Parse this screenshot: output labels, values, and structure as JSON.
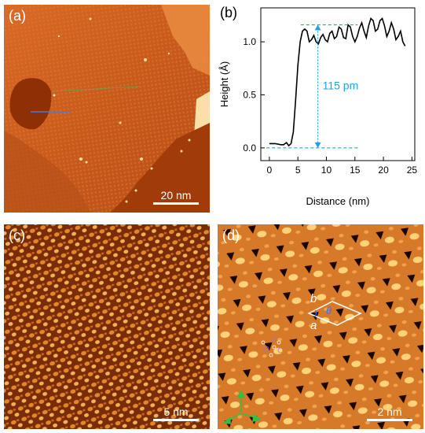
{
  "panels": {
    "a": {
      "label": "(a)",
      "scale_bar": "20 nm"
    },
    "b": {
      "label": "(b)"
    },
    "c": {
      "label": "(c)",
      "scale_bar": "5 nm"
    },
    "d": {
      "label": "(d)",
      "scale_bar": "2 nm",
      "lattice_a": "a",
      "lattice_b": "b",
      "angle": "θ"
    }
  },
  "colors": {
    "afm_dark": "#3a0d00",
    "afm_mid": "#c4581c",
    "afm_light": "#ffd27a",
    "curve": "#000000",
    "annotation": "#1fa3e0",
    "trimer": "#b070c0"
  },
  "chart_data": {
    "type": "line",
    "xlabel": "Distance (nm)",
    "ylabel": "Height (Å)",
    "xlim": [
      -1.5,
      25.5
    ],
    "ylim": [
      -0.12,
      1.32
    ],
    "xticks": [
      0,
      5,
      10,
      15,
      20,
      25
    ],
    "yticks": [
      0.0,
      0.5,
      1.0
    ],
    "xtick_labels": [
      "0",
      "5",
      "10",
      "15",
      "20",
      "25"
    ],
    "ytick_labels": [
      "0.0",
      "0.5",
      "1.0"
    ],
    "grid": false,
    "series": [
      {
        "x": [
          0,
          1,
          2,
          2.5,
          3,
          3.4,
          3.8,
          4.2,
          4.6,
          5.0,
          5.4,
          5.8,
          6.2,
          6.6,
          7.0,
          7.4,
          7.8,
          8.2,
          8.6,
          9.0,
          9.4,
          9.8,
          10.2,
          10.6,
          11.0,
          11.4,
          11.8,
          12.2,
          12.6,
          13.0,
          13.4,
          13.8,
          14.2,
          14.6,
          15.0,
          15.4,
          15.8,
          16.2,
          16.6,
          17.0,
          17.4,
          17.8,
          18.2,
          18.6,
          19.0,
          19.4,
          19.8,
          20.2,
          20.6,
          21.0,
          21.4,
          21.8,
          22.2,
          22.6,
          23.0,
          23.4,
          23.8
        ],
        "y": [
          0.04,
          0.04,
          0.03,
          0.03,
          0.05,
          0.02,
          0.04,
          0.15,
          0.45,
          0.78,
          1.0,
          1.1,
          1.12,
          1.1,
          1.0,
          1.02,
          1.06,
          1.0,
          0.98,
          1.04,
          1.07,
          1.02,
          1.0,
          1.08,
          1.1,
          1.03,
          1.05,
          1.14,
          1.12,
          1.04,
          1.03,
          1.16,
          1.14,
          1.05,
          1.0,
          1.05,
          1.13,
          1.18,
          1.1,
          1.04,
          1.15,
          1.22,
          1.2,
          1.1,
          1.12,
          1.2,
          1.22,
          1.15,
          1.05,
          1.1,
          1.18,
          1.12,
          1.02,
          1.05,
          1.1,
          1.0,
          0.96
        ]
      }
    ],
    "annotation": {
      "text": "115 pm",
      "x": 8.5,
      "y_low": 0.0,
      "y_high": 1.16
    }
  }
}
